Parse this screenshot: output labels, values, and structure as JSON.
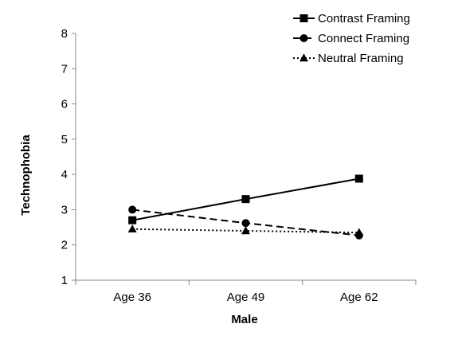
{
  "chart_data": {
    "type": "line",
    "categories": [
      "Age 36",
      "Age 49",
      "Age 62"
    ],
    "xlabel": "Male",
    "ylabel": "Technophobia",
    "ylim": [
      1,
      8
    ],
    "yticks": [
      1,
      2,
      3,
      4,
      5,
      6,
      7,
      8
    ],
    "grid": false,
    "legend_position": "top-right",
    "series": [
      {
        "name": "Contrast Framing",
        "values": [
          2.7,
          3.3,
          3.88
        ],
        "marker": "square",
        "dash": "solid"
      },
      {
        "name": "Connect Framing",
        "values": [
          3.0,
          2.62,
          2.27
        ],
        "marker": "circle",
        "dash": "dashed"
      },
      {
        "name": "Neutral Framing",
        "values": [
          2.45,
          2.4,
          2.35
        ],
        "marker": "triangle",
        "dash": "dotted"
      }
    ]
  }
}
